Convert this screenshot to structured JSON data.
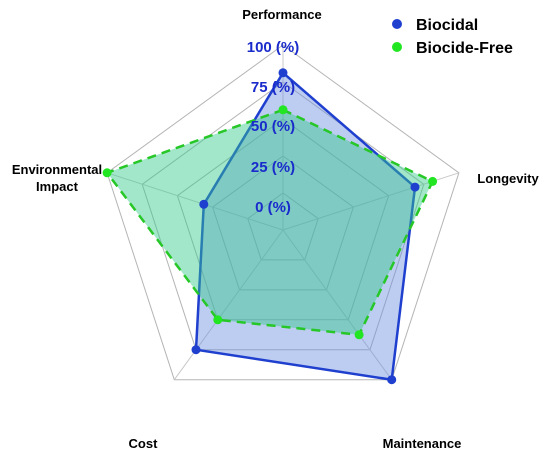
{
  "chart_data": {
    "type": "radar",
    "axes": [
      "Performance",
      "Longevity",
      "Maintenance",
      "Cost",
      "Environmental Impact"
    ],
    "rlim": [
      0,
      100
    ],
    "tick_values": [
      0,
      25,
      50,
      75,
      100
    ],
    "tick_labels": [
      "0 (%)",
      "25 (%)",
      "50 (%)",
      "75 (%)",
      "100 (%)"
    ],
    "grid": true,
    "legend_position": "top-right",
    "series": [
      {
        "name": "Biocidal",
        "values": [
          85,
          75,
          100,
          80,
          45
        ],
        "line_color": "#1f3fcf",
        "marker_color": "#1f3fcf",
        "fill_color": "#6d8fe0",
        "line_style": "solid"
      },
      {
        "name": "Biocide-Free",
        "values": [
          65,
          85,
          70,
          60,
          100
        ],
        "line_color": "#26c726",
        "marker_color": "#22e622",
        "fill_color": "#34c98c",
        "line_style": "dashed"
      }
    ],
    "tick_label_color": "#1a2bcc"
  }
}
